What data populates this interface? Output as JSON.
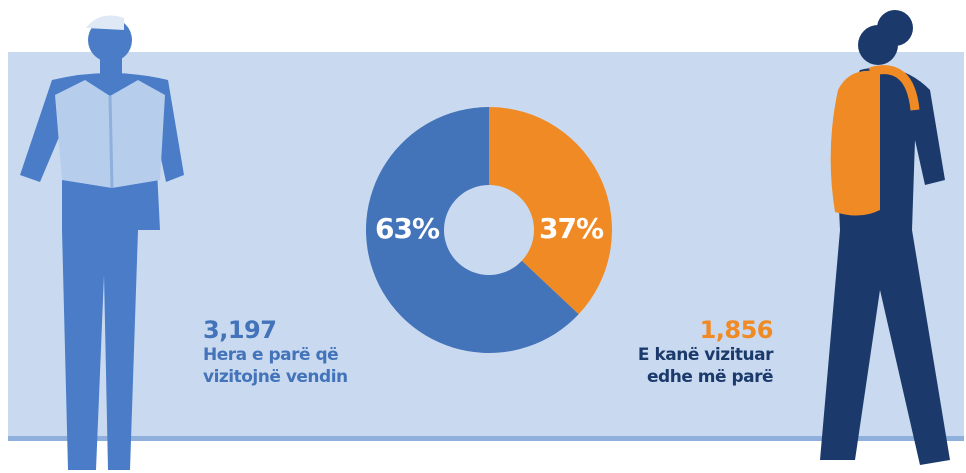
{
  "chart_data": {
    "type": "pie",
    "hole": true,
    "categories": [
      "E kanë vizituar edhe më parë",
      "Hera e parë që vizitojnë vendin"
    ],
    "values": [
      37,
      63
    ],
    "value_labels": [
      "37%",
      "63%"
    ],
    "colors": [
      "#f08a24",
      "#4373b9"
    ],
    "counts": [
      "1,856",
      "3,197"
    ],
    "text_colors": [
      "#1b3a6b",
      "#4373b9"
    ]
  }
}
